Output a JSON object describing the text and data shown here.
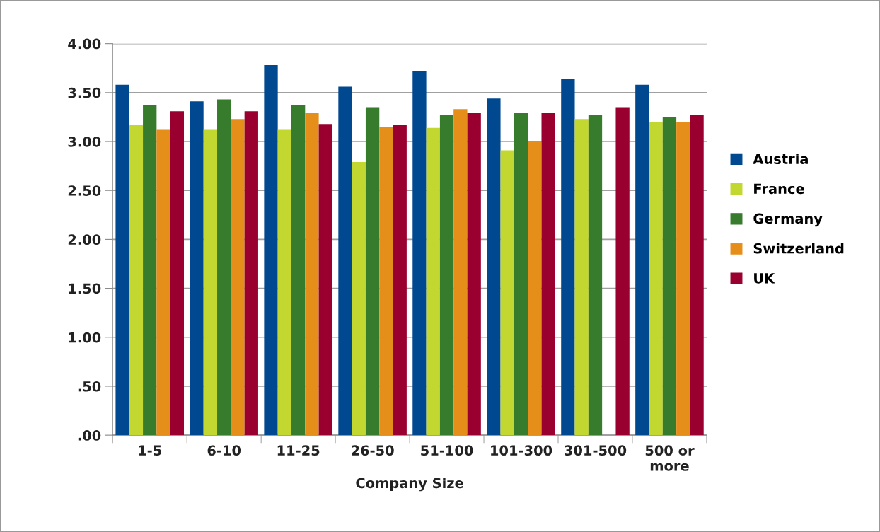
{
  "chart_data": {
    "type": "bar",
    "xlabel": "Company Size",
    "categories": [
      "1-5",
      "6-10",
      "11-25",
      "26-50",
      "51-100",
      "101-300",
      "301-500",
      "500 or\nmore"
    ],
    "series": [
      {
        "name": "Austria",
        "color": "#004990",
        "values": [
          3.58,
          3.41,
          3.78,
          3.56,
          3.72,
          3.44,
          3.64,
          3.58
        ]
      },
      {
        "name": "France",
        "color": "#c2d72f",
        "values": [
          3.17,
          3.12,
          3.12,
          2.79,
          3.14,
          2.91,
          3.23,
          3.2
        ]
      },
      {
        "name": "Germany",
        "color": "#377b2d",
        "values": [
          3.37,
          3.43,
          3.37,
          3.35,
          3.27,
          3.29,
          3.27,
          3.25
        ]
      },
      {
        "name": "Switzerland",
        "color": "#e58e1a",
        "values": [
          3.12,
          3.23,
          3.29,
          3.15,
          3.33,
          3.0,
          null,
          3.2
        ]
      },
      {
        "name": "UK",
        "color": "#990030",
        "values": [
          3.31,
          3.31,
          3.18,
          3.17,
          3.29,
          3.29,
          3.35,
          3.27
        ]
      }
    ],
    "ylim": [
      0,
      4
    ],
    "yticks": [
      {
        "value": 0,
        "label": ".00"
      },
      {
        "value": 0.5,
        "label": ".50"
      },
      {
        "value": 1,
        "label": "1.00"
      },
      {
        "value": 1.5,
        "label": "1.50"
      },
      {
        "value": 2,
        "label": "2.00"
      },
      {
        "value": 2.5,
        "label": "2.50"
      },
      {
        "value": 3,
        "label": "3.00"
      },
      {
        "value": 3.5,
        "label": "3.50"
      },
      {
        "value": 4,
        "label": "4.00"
      }
    ],
    "grid": "y",
    "legend": "right"
  }
}
